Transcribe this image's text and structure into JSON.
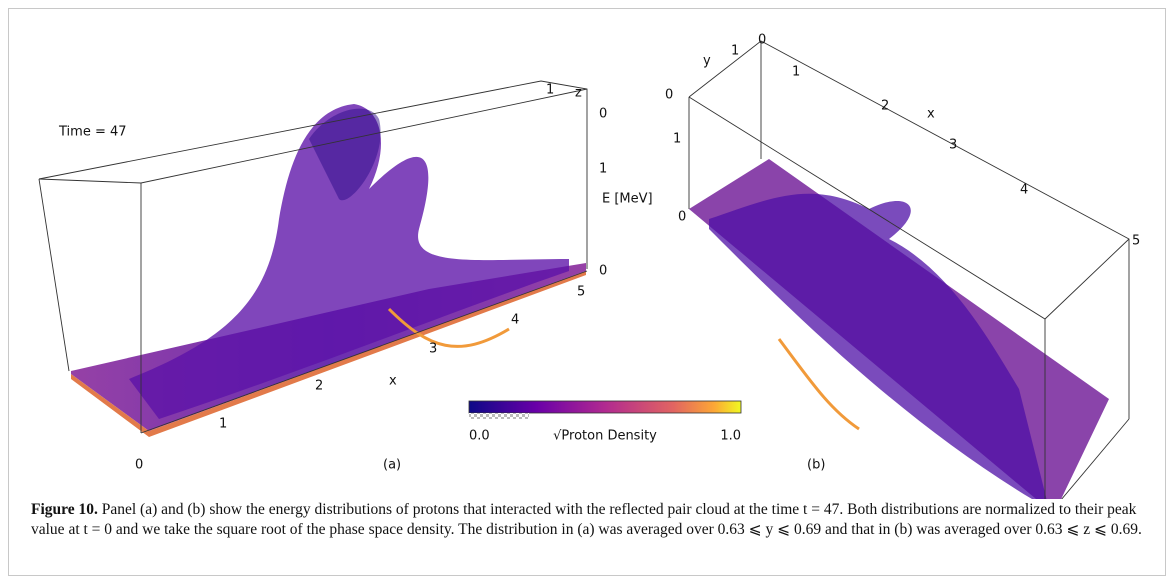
{
  "figure": {
    "panel_a": {
      "time_label": "Time = 47",
      "z_label": "z",
      "z_tick": "1",
      "e_label": "E [MeV]",
      "e_ticks": [
        "0",
        "1",
        "0"
      ],
      "x_label": "x",
      "x_ticks": [
        "0",
        "1",
        "2",
        "3",
        "4",
        "5"
      ],
      "tag": "(a)"
    },
    "panel_b": {
      "y_label": "y",
      "y_ticks": [
        "1",
        "0"
      ],
      "e_ticks": [
        "0",
        "1",
        "0"
      ],
      "x_label": "x",
      "x_ticks": [
        "1",
        "2",
        "3",
        "4",
        "5"
      ],
      "tag": "(b)"
    },
    "colorbar": {
      "min": "0.0",
      "label": "√Proton Density",
      "max": "1.0"
    },
    "caption": {
      "label": "Figure 10.",
      "text": "Panel (a) and (b) show the energy distributions of protons that interacted with the reflected pair cloud at the time t = 47. Both distributions are normalized to their peak value at t = 0 and we take the square root of the phase space density. The distribution in (a) was averaged over 0.63 ⩽ y ⩽ 0.69 and that in (b) was averaged over 0.63 ⩽ z ⩽ 0.69."
    }
  }
}
